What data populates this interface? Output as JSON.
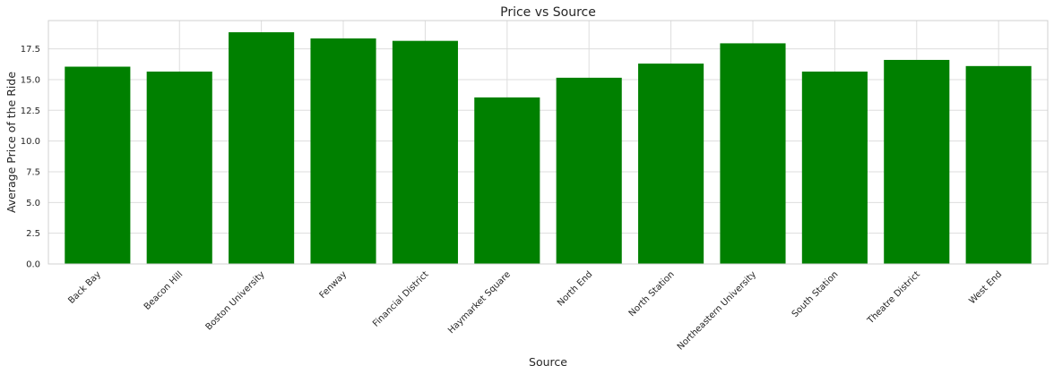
{
  "chart_data": {
    "type": "bar",
    "title": "Price vs Source",
    "xlabel": "Source",
    "ylabel": "Average Price of the Ride",
    "categories": [
      "Back Bay",
      "Beacon Hill",
      "Boston University",
      "Fenway",
      "Financial District",
      "Haymarket Square",
      "North End",
      "North Station",
      "Northeastern University",
      "South Station",
      "Theatre District",
      "West End"
    ],
    "values": [
      16.05,
      15.65,
      18.85,
      18.35,
      18.15,
      13.55,
      15.15,
      16.3,
      17.95,
      15.65,
      16.6,
      16.1
    ],
    "ylim": [
      0,
      19.8
    ],
    "yticks": [
      0.0,
      2.5,
      5.0,
      7.5,
      10.0,
      12.5,
      15.0,
      17.5
    ],
    "ytick_labels": [
      "0.0",
      "2.5",
      "5.0",
      "7.5",
      "10.0",
      "12.5",
      "15.0",
      "17.5"
    ],
    "bar_color": "#008000",
    "grid": true,
    "grid_color": "#dddddd"
  }
}
